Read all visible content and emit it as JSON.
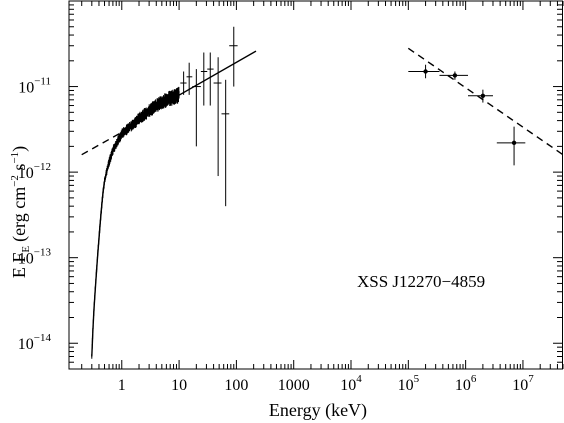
{
  "chart_data": {
    "type": "scatter",
    "title": "",
    "xlabel": "Energy (keV)",
    "ylabel": "E F",
    "ylabel_sub": "E",
    "ylabel_units": "(erg cm",
    "ylabel_units_exp1": "−2",
    "ylabel_units_mid": " s",
    "ylabel_units_exp2": "−1",
    "ylabel_units_end": ")",
    "xscale": "log",
    "yscale": "log",
    "xlim": [
      0.12,
      50000000
    ],
    "ylim": [
      5e-15,
      1e-10
    ],
    "x_ticks": [
      {
        "value": 1,
        "base": "1",
        "exp": ""
      },
      {
        "value": 10,
        "base": "10",
        "exp": ""
      },
      {
        "value": 100,
        "base": "100",
        "exp": ""
      },
      {
        "value": 1000,
        "base": "1000",
        "exp": ""
      },
      {
        "value": 10000,
        "base": "10",
        "exp": "4"
      },
      {
        "value": 100000,
        "base": "10",
        "exp": "5"
      },
      {
        "value": 1000000,
        "base": "10",
        "exp": "6"
      },
      {
        "value": 10000000,
        "base": "10",
        "exp": "7"
      }
    ],
    "y_ticks": [
      {
        "value": 1e-11,
        "base": "10",
        "exp": "−11"
      },
      {
        "value": 1e-12,
        "base": "10",
        "exp": "−12"
      },
      {
        "value": 1e-13,
        "base": "10",
        "exp": "−13"
      },
      {
        "value": 1e-14,
        "base": "10",
        "exp": "−14"
      }
    ],
    "annotation": "XSS J12270−4859",
    "series": [
      {
        "kind": "xray-continuum",
        "points": [
          {
            "x": 0.3,
            "y": 7e-15
          },
          {
            "x": 0.32,
            "y": 2e-14
          },
          {
            "x": 0.35,
            "y": 5e-14
          },
          {
            "x": 0.38,
            "y": 1.1e-13
          },
          {
            "x": 0.42,
            "y": 2.5e-13
          },
          {
            "x": 0.46,
            "y": 5e-13
          },
          {
            "x": 0.5,
            "y": 8e-13
          },
          {
            "x": 0.6,
            "y": 1.3e-12
          },
          {
            "x": 0.7,
            "y": 1.8e-12
          },
          {
            "x": 0.85,
            "y": 2.3e-12
          },
          {
            "x": 1.0,
            "y": 2.8e-12
          },
          {
            "x": 1.5,
            "y": 3.5e-12
          },
          {
            "x": 2.0,
            "y": 4.2e-12
          },
          {
            "x": 3.0,
            "y": 5.2e-12
          },
          {
            "x": 4.0,
            "y": 6e-12
          },
          {
            "x": 6.0,
            "y": 7e-12
          },
          {
            "x": 8.0,
            "y": 7.5e-12
          },
          {
            "x": 10.0,
            "y": 8e-12
          }
        ]
      },
      {
        "kind": "hard-xray-points",
        "points": [
          {
            "x": 12,
            "y": 1.1e-11,
            "xlo": 10.5,
            "xhi": 13.5,
            "ylo": 8e-12,
            "yhi": 1.5e-11
          },
          {
            "x": 15,
            "y": 1.3e-11,
            "xlo": 13.5,
            "xhi": 17,
            "ylo": 8e-12,
            "yhi": 1.9e-11
          },
          {
            "x": 20,
            "y": 1e-11,
            "xlo": 17,
            "xhi": 24,
            "ylo": 2e-12,
            "yhi": 1.6e-11
          },
          {
            "x": 27,
            "y": 1.5e-11,
            "xlo": 24,
            "xhi": 31,
            "ylo": 6e-12,
            "yhi": 2.5e-11
          },
          {
            "x": 35,
            "y": 1.6e-11,
            "xlo": 31,
            "xhi": 40,
            "ylo": 6e-12,
            "yhi": 2.5e-11
          },
          {
            "x": 48,
            "y": 1.1e-11,
            "xlo": 40,
            "xhi": 55,
            "ylo": 9e-13,
            "yhi": 2.2e-11
          },
          {
            "x": 65,
            "y": 4.8e-12,
            "xlo": 55,
            "xhi": 75,
            "ylo": 4e-13,
            "yhi": 1.2e-11
          },
          {
            "x": 90,
            "y": 3e-11,
            "xlo": 75,
            "xhi": 105,
            "ylo": 1e-11,
            "yhi": 5e-11
          }
        ]
      },
      {
        "kind": "gamma-ray-points",
        "points": [
          {
            "x": 200000,
            "y": 1.5e-11,
            "xlo": 100000,
            "xhi": 350000,
            "ylo": 1.25e-11,
            "yhi": 1.8e-11
          },
          {
            "x": 650000,
            "y": 1.35e-11,
            "xlo": 350000,
            "xhi": 1100000,
            "ylo": 1.2e-11,
            "yhi": 1.5e-11
          },
          {
            "x": 2000000,
            "y": 7.8e-12,
            "xlo": 1100000,
            "xhi": 3000000,
            "ylo": 6.5e-12,
            "yhi": 9.2e-12
          },
          {
            "x": 7000000,
            "y": 2.2e-12,
            "xlo": 3500000,
            "xhi": 11000000,
            "ylo": 1.2e-12,
            "yhi": 3.4e-12
          }
        ]
      },
      {
        "kind": "model-solid",
        "points": [
          {
            "x": 3.0,
            "y": 5e-12
          },
          {
            "x": 220,
            "y": 2.6e-11
          }
        ]
      },
      {
        "kind": "model-dashed-low",
        "points": [
          {
            "x": 0.2,
            "y": 1.6e-12
          },
          {
            "x": 1.5,
            "y": 3.4e-12
          }
        ]
      },
      {
        "kind": "model-dashed-high",
        "points": [
          {
            "x": 100000,
            "y": 2.8e-11
          },
          {
            "x": 50000000,
            "y": 1.6e-12
          }
        ]
      }
    ]
  }
}
